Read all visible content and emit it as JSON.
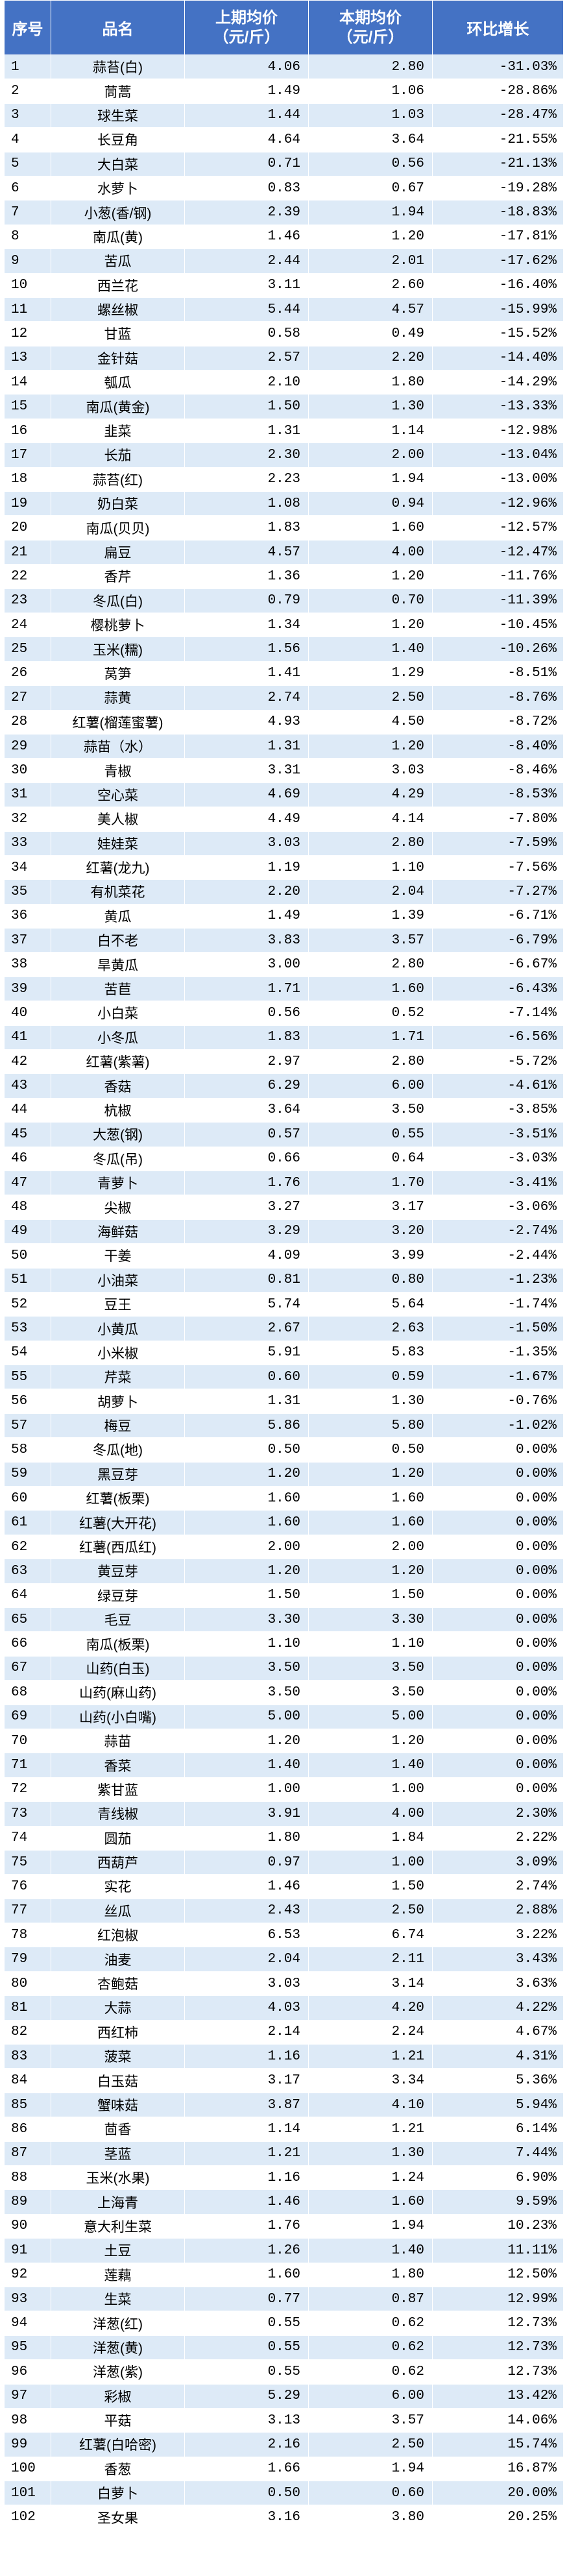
{
  "headers": {
    "index": "序号",
    "name": "品名",
    "prev_price": "上期均价\n（元/斤）",
    "curr_price": "本期均价\n（元/斤）",
    "change": "环比增长"
  },
  "colors": {
    "header_bg": "#4472c4",
    "stripe": "#ddeaf7"
  },
  "rows": [
    [
      "1",
      "蒜苔(白)",
      "4.06",
      "2.80",
      "-31.03%"
    ],
    [
      "2",
      "茼蒿",
      "1.49",
      "1.06",
      "-28.86%"
    ],
    [
      "3",
      "球生菜",
      "1.44",
      "1.03",
      "-28.47%"
    ],
    [
      "4",
      "长豆角",
      "4.64",
      "3.64",
      "-21.55%"
    ],
    [
      "5",
      "大白菜",
      "0.71",
      "0.56",
      "-21.13%"
    ],
    [
      "6",
      "水萝卜",
      "0.83",
      "0.67",
      "-19.28%"
    ],
    [
      "7",
      "小葱(香/钢)",
      "2.39",
      "1.94",
      "-18.83%"
    ],
    [
      "8",
      "南瓜(黄)",
      "1.46",
      "1.20",
      "-17.81%"
    ],
    [
      "9",
      "苦瓜",
      "2.44",
      "2.01",
      "-17.62%"
    ],
    [
      "10",
      "西兰花",
      "3.11",
      "2.60",
      "-16.40%"
    ],
    [
      "11",
      "螺丝椒",
      "5.44",
      "4.57",
      "-15.99%"
    ],
    [
      "12",
      "甘蓝",
      "0.58",
      "0.49",
      "-15.52%"
    ],
    [
      "13",
      "金针菇",
      "2.57",
      "2.20",
      "-14.40%"
    ],
    [
      "14",
      "瓠瓜",
      "2.10",
      "1.80",
      "-14.29%"
    ],
    [
      "15",
      "南瓜(黄金)",
      "1.50",
      "1.30",
      "-13.33%"
    ],
    [
      "16",
      "韭菜",
      "1.31",
      "1.14",
      "-12.98%"
    ],
    [
      "17",
      "长茄",
      "2.30",
      "2.00",
      "-13.04%"
    ],
    [
      "18",
      "蒜苔(红)",
      "2.23",
      "1.94",
      "-13.00%"
    ],
    [
      "19",
      "奶白菜",
      "1.08",
      "0.94",
      "-12.96%"
    ],
    [
      "20",
      "南瓜(贝贝)",
      "1.83",
      "1.60",
      "-12.57%"
    ],
    [
      "21",
      "扁豆",
      "4.57",
      "4.00",
      "-12.47%"
    ],
    [
      "22",
      "香芹",
      "1.36",
      "1.20",
      "-11.76%"
    ],
    [
      "23",
      "冬瓜(白)",
      "0.79",
      "0.70",
      "-11.39%"
    ],
    [
      "24",
      "樱桃萝卜",
      "1.34",
      "1.20",
      "-10.45%"
    ],
    [
      "25",
      "玉米(糯)",
      "1.56",
      "1.40",
      "-10.26%"
    ],
    [
      "26",
      "莴笋",
      "1.41",
      "1.29",
      "-8.51%"
    ],
    [
      "27",
      "蒜黄",
      "2.74",
      "2.50",
      "-8.76%"
    ],
    [
      "28",
      "红薯(榴莲蜜薯)",
      "4.93",
      "4.50",
      "-8.72%"
    ],
    [
      "29",
      "蒜苗（水）",
      "1.31",
      "1.20",
      "-8.40%"
    ],
    [
      "30",
      "青椒",
      "3.31",
      "3.03",
      "-8.46%"
    ],
    [
      "31",
      "空心菜",
      "4.69",
      "4.29",
      "-8.53%"
    ],
    [
      "32",
      "美人椒",
      "4.49",
      "4.14",
      "-7.80%"
    ],
    [
      "33",
      "娃娃菜",
      "3.03",
      "2.80",
      "-7.59%"
    ],
    [
      "34",
      "红薯(龙九)",
      "1.19",
      "1.10",
      "-7.56%"
    ],
    [
      "35",
      "有机菜花",
      "2.20",
      "2.04",
      "-7.27%"
    ],
    [
      "36",
      "黄瓜",
      "1.49",
      "1.39",
      "-6.71%"
    ],
    [
      "37",
      "白不老",
      "3.83",
      "3.57",
      "-6.79%"
    ],
    [
      "38",
      "旱黄瓜",
      "3.00",
      "2.80",
      "-6.67%"
    ],
    [
      "39",
      "苦苣",
      "1.71",
      "1.60",
      "-6.43%"
    ],
    [
      "40",
      "小白菜",
      "0.56",
      "0.52",
      "-7.14%"
    ],
    [
      "41",
      "小冬瓜",
      "1.83",
      "1.71",
      "-6.56%"
    ],
    [
      "42",
      "红薯(紫薯)",
      "2.97",
      "2.80",
      "-5.72%"
    ],
    [
      "43",
      "香菇",
      "6.29",
      "6.00",
      "-4.61%"
    ],
    [
      "44",
      "杭椒",
      "3.64",
      "3.50",
      "-3.85%"
    ],
    [
      "45",
      "大葱(钢)",
      "0.57",
      "0.55",
      "-3.51%"
    ],
    [
      "46",
      "冬瓜(吊)",
      "0.66",
      "0.64",
      "-3.03%"
    ],
    [
      "47",
      "青萝卜",
      "1.76",
      "1.70",
      "-3.41%"
    ],
    [
      "48",
      "尖椒",
      "3.27",
      "3.17",
      "-3.06%"
    ],
    [
      "49",
      "海鲜菇",
      "3.29",
      "3.20",
      "-2.74%"
    ],
    [
      "50",
      "干姜",
      "4.09",
      "3.99",
      "-2.44%"
    ],
    [
      "51",
      "小油菜",
      "0.81",
      "0.80",
      "-1.23%"
    ],
    [
      "52",
      "豆王",
      "5.74",
      "5.64",
      "-1.74%"
    ],
    [
      "53",
      "小黄瓜",
      "2.67",
      "2.63",
      "-1.50%"
    ],
    [
      "54",
      "小米椒",
      "5.91",
      "5.83",
      "-1.35%"
    ],
    [
      "55",
      "芹菜",
      "0.60",
      "0.59",
      "-1.67%"
    ],
    [
      "56",
      "胡萝卜",
      "1.31",
      "1.30",
      "-0.76%"
    ],
    [
      "57",
      "梅豆",
      "5.86",
      "5.80",
      "-1.02%"
    ],
    [
      "58",
      "冬瓜(地)",
      "0.50",
      "0.50",
      "0.00%"
    ],
    [
      "59",
      "黑豆芽",
      "1.20",
      "1.20",
      "0.00%"
    ],
    [
      "60",
      "红薯(板栗)",
      "1.60",
      "1.60",
      "0.00%"
    ],
    [
      "61",
      "红薯(大开花)",
      "1.60",
      "1.60",
      "0.00%"
    ],
    [
      "62",
      "红薯(西瓜红)",
      "2.00",
      "2.00",
      "0.00%"
    ],
    [
      "63",
      "黄豆芽",
      "1.20",
      "1.20",
      "0.00%"
    ],
    [
      "64",
      "绿豆芽",
      "1.50",
      "1.50",
      "0.00%"
    ],
    [
      "65",
      "毛豆",
      "3.30",
      "3.30",
      "0.00%"
    ],
    [
      "66",
      "南瓜(板栗)",
      "1.10",
      "1.10",
      "0.00%"
    ],
    [
      "67",
      "山药(白玉)",
      "3.50",
      "3.50",
      "0.00%"
    ],
    [
      "68",
      "山药(麻山药)",
      "3.50",
      "3.50",
      "0.00%"
    ],
    [
      "69",
      "山药(小白嘴)",
      "5.00",
      "5.00",
      "0.00%"
    ],
    [
      "70",
      "蒜苗",
      "1.20",
      "1.20",
      "0.00%"
    ],
    [
      "71",
      "香菜",
      "1.40",
      "1.40",
      "0.00%"
    ],
    [
      "72",
      "紫甘蓝",
      "1.00",
      "1.00",
      "0.00%"
    ],
    [
      "73",
      "青线椒",
      "3.91",
      "4.00",
      "2.30%"
    ],
    [
      "74",
      "圆茄",
      "1.80",
      "1.84",
      "2.22%"
    ],
    [
      "75",
      "西葫芦",
      "0.97",
      "1.00",
      "3.09%"
    ],
    [
      "76",
      "实花",
      "1.46",
      "1.50",
      "2.74%"
    ],
    [
      "77",
      "丝瓜",
      "2.43",
      "2.50",
      "2.88%"
    ],
    [
      "78",
      "红泡椒",
      "6.53",
      "6.74",
      "3.22%"
    ],
    [
      "79",
      "油麦",
      "2.04",
      "2.11",
      "3.43%"
    ],
    [
      "80",
      "杏鲍菇",
      "3.03",
      "3.14",
      "3.63%"
    ],
    [
      "81",
      "大蒜",
      "4.03",
      "4.20",
      "4.22%"
    ],
    [
      "82",
      "西红柿",
      "2.14",
      "2.24",
      "4.67%"
    ],
    [
      "83",
      "菠菜",
      "1.16",
      "1.21",
      "4.31%"
    ],
    [
      "84",
      "白玉菇",
      "3.17",
      "3.34",
      "5.36%"
    ],
    [
      "85",
      "蟹味菇",
      "3.87",
      "4.10",
      "5.94%"
    ],
    [
      "86",
      "茴香",
      "1.14",
      "1.21",
      "6.14%"
    ],
    [
      "87",
      "茎蓝",
      "1.21",
      "1.30",
      "7.44%"
    ],
    [
      "88",
      "玉米(水果)",
      "1.16",
      "1.24",
      "6.90%"
    ],
    [
      "89",
      "上海青",
      "1.46",
      "1.60",
      "9.59%"
    ],
    [
      "90",
      "意大利生菜",
      "1.76",
      "1.94",
      "10.23%"
    ],
    [
      "91",
      "土豆",
      "1.26",
      "1.40",
      "11.11%"
    ],
    [
      "92",
      "莲藕",
      "1.60",
      "1.80",
      "12.50%"
    ],
    [
      "93",
      "生菜",
      "0.77",
      "0.87",
      "12.99%"
    ],
    [
      "94",
      "洋葱(红)",
      "0.55",
      "0.62",
      "12.73%"
    ],
    [
      "95",
      "洋葱(黄)",
      "0.55",
      "0.62",
      "12.73%"
    ],
    [
      "96",
      "洋葱(紫)",
      "0.55",
      "0.62",
      "12.73%"
    ],
    [
      "97",
      "彩椒",
      "5.29",
      "6.00",
      "13.42%"
    ],
    [
      "98",
      "平菇",
      "3.13",
      "3.57",
      "14.06%"
    ],
    [
      "99",
      "红薯(白哈密)",
      "2.16",
      "2.50",
      "15.74%"
    ],
    [
      "100",
      "香葱",
      "1.66",
      "1.94",
      "16.87%"
    ],
    [
      "101",
      "白萝卜",
      "0.50",
      "0.60",
      "20.00%"
    ],
    [
      "102",
      "圣女果",
      "3.16",
      "3.80",
      "20.25%"
    ]
  ]
}
